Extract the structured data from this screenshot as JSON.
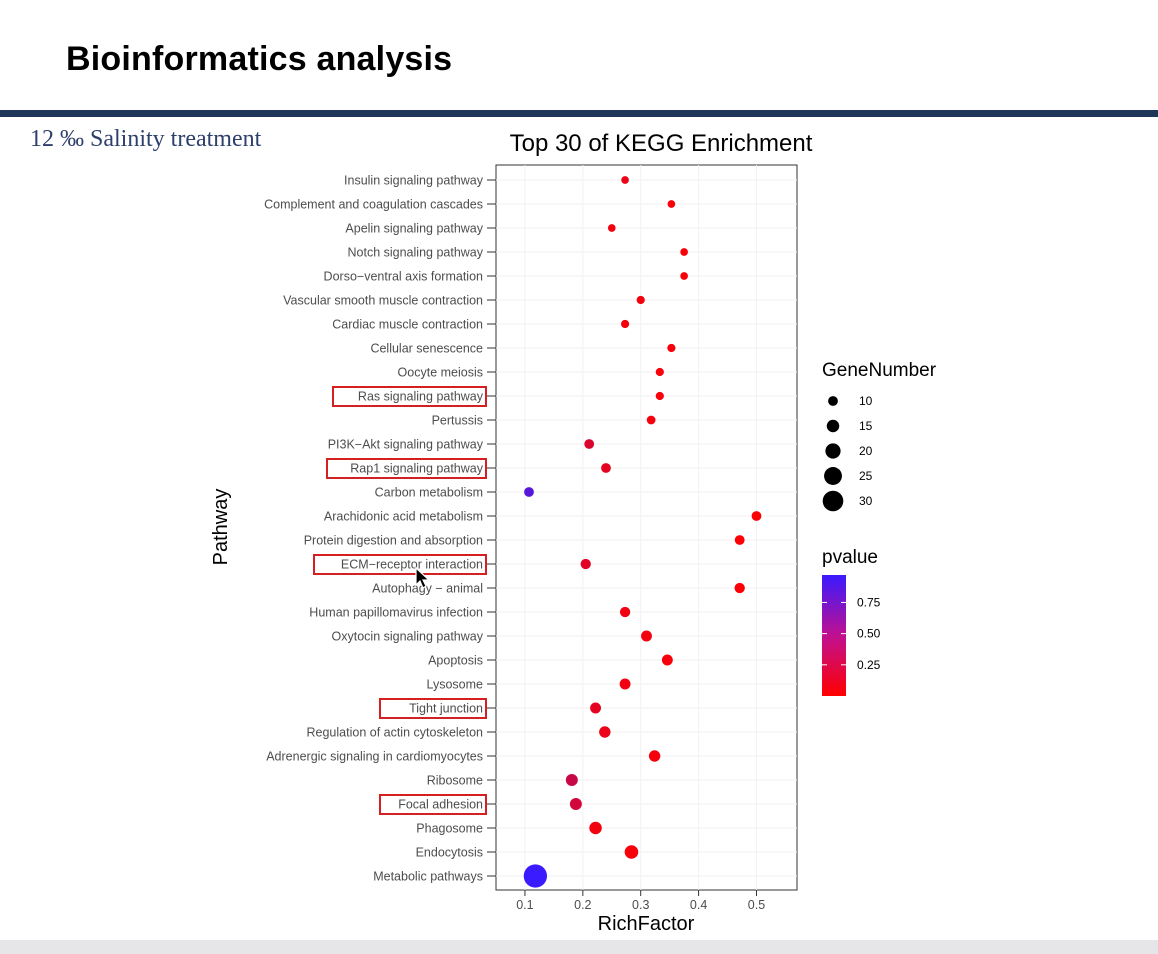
{
  "slide": {
    "title": "Bioinformatics analysis",
    "subtitle": "12 ‰ Salinity treatment"
  },
  "chart_data": {
    "type": "scatter",
    "title": "Top 30 of KEGG Enrichment",
    "xlabel": "RichFactor",
    "ylabel": "Pathway",
    "xlim": [
      0.05,
      0.57
    ],
    "xticks": [
      0.1,
      0.2,
      0.3,
      0.4,
      0.5
    ],
    "categories": [
      "Insulin signaling pathway",
      "Complement and coagulation cascades",
      "Apelin signaling pathway",
      "Notch signaling pathway",
      "Dorso−ventral axis formation",
      "Vascular smooth muscle contraction",
      "Cardiac muscle contraction",
      "Cellular senescence",
      "Oocyte meiosis",
      "Ras signaling pathway",
      "Pertussis",
      "PI3K−Akt signaling pathway",
      "Rap1 signaling pathway",
      "Carbon metabolism",
      "Arachidonic acid metabolism",
      "Protein digestion and absorption",
      "ECM−receptor interaction",
      "Autophagy − animal",
      "Human papillomavirus infection",
      "Oxytocin signaling pathway",
      "Apoptosis",
      "Lysosome",
      "Tight junction",
      "Regulation of actin cytoskeleton",
      "Adrenergic signaling in cardiomyocytes",
      "Ribosome",
      "Focal adhesion",
      "Phagosome",
      "Endocytosis",
      "Metabolic pathways"
    ],
    "highlighted": [
      "Ras signaling pathway",
      "Rap1 signaling pathway",
      "ECM−receptor interaction",
      "Tight junction",
      "Focal adhesion"
    ],
    "richfactor": [
      0.273,
      0.353,
      0.25,
      0.375,
      0.375,
      0.3,
      0.273,
      0.353,
      0.333,
      0.333,
      0.318,
      0.211,
      0.24,
      0.107,
      0.5,
      0.471,
      0.205,
      0.471,
      0.273,
      0.31,
      0.346,
      0.273,
      0.222,
      0.238,
      0.324,
      0.181,
      0.188,
      0.222,
      0.284,
      0.118
    ],
    "gene_number": [
      6,
      6,
      6,
      6,
      6,
      7,
      7,
      7,
      7,
      7,
      8,
      10,
      10,
      10,
      10,
      10,
      11,
      11,
      11,
      12,
      12,
      12,
      12,
      13,
      13,
      14,
      14,
      15,
      17,
      35
    ],
    "pvalue": [
      0.08,
      0.04,
      0.06,
      0.03,
      0.03,
      0.05,
      0.05,
      0.03,
      0.04,
      0.04,
      0.05,
      0.18,
      0.13,
      0.82,
      0.02,
      0.02,
      0.15,
      0.02,
      0.07,
      0.06,
      0.04,
      0.07,
      0.13,
      0.1,
      0.05,
      0.27,
      0.22,
      0.06,
      0.04,
      0.97
    ],
    "legend_size": {
      "title": "GeneNumber",
      "values": [
        10,
        15,
        20,
        25,
        30
      ],
      "labels": [
        "10",
        "15",
        "20",
        "25",
        "30"
      ]
    },
    "legend_color": {
      "title": "pvalue",
      "ticks": [
        0.75,
        0.5,
        0.25
      ],
      "labels": [
        "0.75",
        "0.50",
        "0.25"
      ],
      "range": [
        0.0,
        0.97
      ],
      "low_color": "#ff0000",
      "high_color": "#3a1aff"
    },
    "highlight_color": "#d42020"
  }
}
